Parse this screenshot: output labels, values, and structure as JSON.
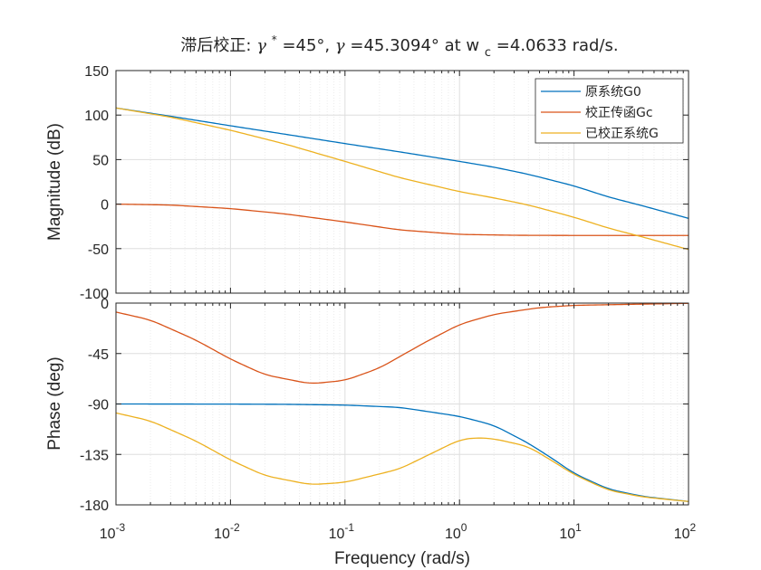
{
  "title": {
    "prefix": "滞后校正: ",
    "gamma_sym": "γ",
    "star": "*",
    "part1": "=45°, ",
    "part2": "=45.3094° at w",
    "sub_c": "c",
    "part3": "=4.0633 rad/s."
  },
  "colors": {
    "g0": "#0072BD",
    "gc": "#D95319",
    "g": "#EDB120",
    "grid": "#e6e6e6",
    "axis": "#262626"
  },
  "chart_data": [
    {
      "type": "line",
      "plot": "magnitude",
      "xscale": "log",
      "xlim": [
        0.001,
        100
      ],
      "ylim": [
        -100,
        150
      ],
      "yticks": [
        -100,
        -50,
        0,
        50,
        100,
        150
      ],
      "ytick_labels": [
        "-100",
        "-50",
        "0",
        "50",
        "100",
        "150"
      ],
      "ylabel": "Magnitude (dB)",
      "grid": true,
      "legend_position": "top-right",
      "series": [
        {
          "name": "原系统G0",
          "x": [
            0.001,
            0.003,
            0.01,
            0.03,
            0.1,
            0.3,
            1,
            2,
            4,
            10,
            20,
            40,
            100
          ],
          "y": [
            108,
            98.7,
            88,
            78.5,
            68,
            58.7,
            48,
            41.5,
            33.5,
            20.5,
            8,
            -2,
            -16
          ]
        },
        {
          "name": "校正传函Gc",
          "x": [
            0.001,
            0.003,
            0.01,
            0.03,
            0.1,
            0.3,
            1,
            3,
            10,
            100
          ],
          "y": [
            0,
            -1,
            -5,
            -11,
            -20,
            -29,
            -34,
            -35,
            -35.2,
            -35.2
          ]
        },
        {
          "name": "已校正系统G",
          "x": [
            0.001,
            0.003,
            0.01,
            0.03,
            0.1,
            0.3,
            1,
            2,
            4,
            10,
            20,
            40,
            100
          ],
          "y": [
            108,
            97.7,
            83,
            67.5,
            48,
            29.7,
            14,
            7,
            -1,
            -14.7,
            -27,
            -37,
            -51
          ]
        }
      ]
    },
    {
      "type": "line",
      "plot": "phase",
      "xscale": "log",
      "xlim": [
        0.001,
        100
      ],
      "ylim": [
        -180,
        0
      ],
      "yticks": [
        -180,
        -135,
        -90,
        -45,
        0
      ],
      "ytick_labels": [
        "-180",
        "-135",
        "-90",
        "-45",
        "0"
      ],
      "xticks": [
        0.001,
        0.01,
        0.1,
        1,
        10,
        100
      ],
      "xtick_bases": [
        "10",
        "10",
        "10",
        "10",
        "10",
        "10"
      ],
      "xtick_exps": [
        "-3",
        "-2",
        "-1",
        "0",
        "1",
        "2"
      ],
      "xlabel": "Frequency  (rad/s)",
      "ylabel": "Phase (deg)",
      "grid": true,
      "series": [
        {
          "name": "原系统G0",
          "x": [
            0.001,
            0.01,
            0.03,
            0.1,
            0.3,
            1,
            2,
            4,
            7,
            10,
            20,
            40,
            100
          ],
          "y": [
            -90,
            -90.1,
            -90.3,
            -91,
            -93,
            -101,
            -109,
            -125,
            -141,
            -152,
            -166,
            -172.5,
            -177
          ]
        },
        {
          "name": "校正传函Gc",
          "x": [
            0.001,
            0.002,
            0.005,
            0.01,
            0.02,
            0.05,
            0.1,
            0.2,
            0.5,
            1,
            2,
            5,
            10,
            100
          ],
          "y": [
            -8,
            -15,
            -33,
            -50,
            -64,
            -72,
            -69,
            -58,
            -35,
            -19,
            -10,
            -4,
            -2,
            -0.2
          ]
        },
        {
          "name": "已校正系统G",
          "x": [
            0.001,
            0.002,
            0.005,
            0.01,
            0.02,
            0.05,
            0.1,
            0.3,
            0.6,
            1,
            1.4,
            2,
            4,
            7,
            10,
            20,
            40,
            100
          ],
          "y": [
            -98,
            -105,
            -123,
            -140,
            -154,
            -162,
            -160,
            -148,
            -133,
            -122,
            -120,
            -121,
            -128,
            -143,
            -153,
            -167,
            -173,
            -177
          ]
        }
      ]
    }
  ]
}
